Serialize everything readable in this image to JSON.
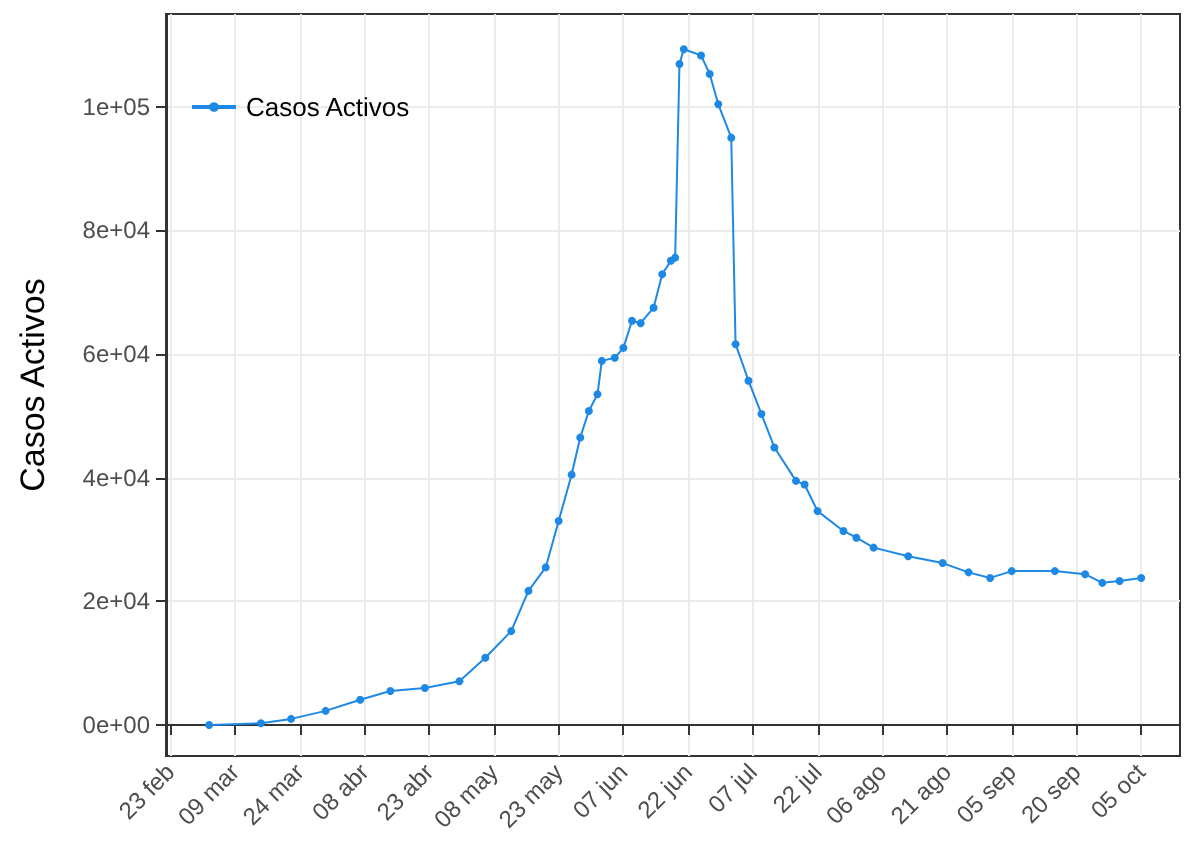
{
  "chart_data": {
    "type": "line",
    "ylabel": "Casos Activos",
    "x": [
      "--03-03",
      "--03-15",
      "--03-22",
      "--03-30",
      "--04-07",
      "--04-14",
      "--04-22",
      "--04-30",
      "--05-06",
      "--05-12",
      "--05-16",
      "--05-20",
      "--05-23",
      "--05-26",
      "--05-28",
      "--05-30",
      "--06-01",
      "--06-02",
      "--06-05",
      "--06-07",
      "--06-09",
      "--06-11",
      "--06-14",
      "--06-16",
      "--06-18",
      "--06-19",
      "--06-20",
      "--06-21",
      "--06-25",
      "--06-27",
      "--06-29",
      "--07-02",
      "--07-03",
      "--07-06",
      "--07-09",
      "--07-12",
      "--07-17",
      "--07-19",
      "--07-22",
      "--07-28",
      "--07-31",
      "--08-04",
      "--08-12",
      "--08-20",
      "--08-26",
      "--08-31",
      "--09-05",
      "--09-15",
      "--09-22",
      "--09-26",
      "--09-30",
      "--10-05"
    ],
    "series": [
      {
        "name": "Casos Activos",
        "color": "#1e88e5",
        "values": [
          0,
          300,
          1000,
          2300,
          4100,
          5500,
          6000,
          7100,
          10900,
          15200,
          21700,
          25500,
          33000,
          40500,
          46500,
          50800,
          53500,
          58900,
          59400,
          61000,
          65400,
          65000,
          67500,
          72900,
          75100,
          75600,
          106900,
          109300,
          108300,
          105300,
          100400,
          95000,
          61600,
          55700,
          50300,
          44900,
          39500,
          38900,
          34600,
          31400,
          30300,
          28700,
          27300,
          26200,
          24700,
          23800,
          24900,
          24900,
          24400,
          23000,
          23300,
          23800
        ]
      }
    ],
    "xlim": [
      "--02-22",
      "--10-14"
    ],
    "xticks": [
      {
        "value": "--02-23",
        "label": "23 feb"
      },
      {
        "value": "--03-09",
        "label": "09 mar"
      },
      {
        "value": "--03-24",
        "label": "24 mar"
      },
      {
        "value": "--04-08",
        "label": "08 abr"
      },
      {
        "value": "--04-23",
        "label": "23 abr"
      },
      {
        "value": "--05-08",
        "label": "08 may"
      },
      {
        "value": "--05-23",
        "label": "23 may"
      },
      {
        "value": "--06-07",
        "label": "07 jun"
      },
      {
        "value": "--06-22",
        "label": "22 jun"
      },
      {
        "value": "--07-07",
        "label": "07 jul"
      },
      {
        "value": "--07-22",
        "label": "22 jul"
      },
      {
        "value": "--08-06",
        "label": "06 ago"
      },
      {
        "value": "--08-21",
        "label": "21 ago"
      },
      {
        "value": "--09-05",
        "label": "05 sep"
      },
      {
        "value": "--09-20",
        "label": "20 sep"
      },
      {
        "value": "--10-05",
        "label": "05 oct"
      }
    ],
    "ylim": [
      -5000,
      115000
    ],
    "yticks": [
      {
        "value": 0,
        "label": "0e+00"
      },
      {
        "value": 20000,
        "label": "2e+04"
      },
      {
        "value": 40000,
        "label": "4e+04"
      },
      {
        "value": 60000,
        "label": "6e+04"
      },
      {
        "value": 80000,
        "label": "8e+04"
      },
      {
        "value": 100000,
        "label": "1e+05"
      }
    ],
    "grid": true,
    "legend": "top left",
    "marker": "circle",
    "line_style": "solid"
  }
}
